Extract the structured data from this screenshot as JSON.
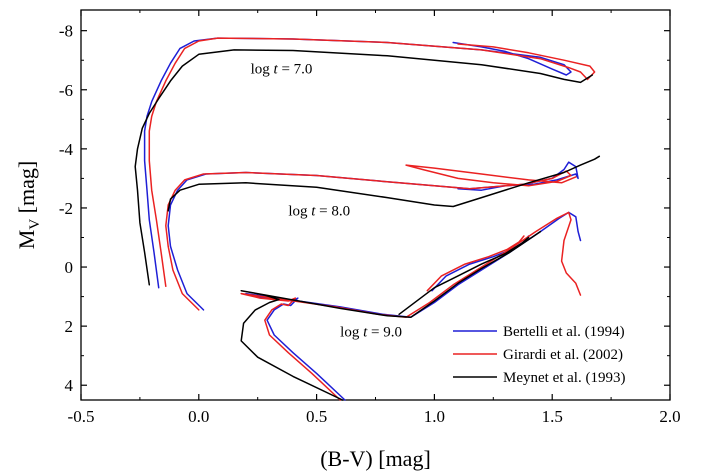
{
  "chart_data": {
    "type": "line",
    "xlabel": "(B-V) [mag]",
    "ylabel": "M",
    "ylabel_sub": "V",
    "ylabel_unit": " [mag]",
    "xlim": [
      -0.5,
      2.0
    ],
    "ylim": [
      4.5,
      -8.7
    ],
    "y_inverted": true,
    "x_ticks": [
      {
        "value": -0.5,
        "label": "-0.5"
      },
      {
        "value": 0.0,
        "label": "0.0"
      },
      {
        "value": 0.5,
        "label": "0.5"
      },
      {
        "value": 1.0,
        "label": "1.0"
      },
      {
        "value": 1.5,
        "label": "1.5"
      },
      {
        "value": 2.0,
        "label": "2.0"
      }
    ],
    "y_ticks": [
      {
        "value": -8,
        "label": "-8"
      },
      {
        "value": -6,
        "label": "-6"
      },
      {
        "value": -4,
        "label": "-4"
      },
      {
        "value": -2,
        "label": "-2"
      },
      {
        "value": 0,
        "label": "0"
      },
      {
        "value": 2,
        "label": "2"
      },
      {
        "value": 4,
        "label": "4"
      }
    ],
    "grid": false,
    "legend_position": "bottom-right",
    "annotations": [
      {
        "prefix": "log ",
        "var": "t",
        "suffix": " = 7.0",
        "x": 0.22,
        "y": -6.55
      },
      {
        "prefix": "log ",
        "var": "t",
        "suffix": " = 8.0",
        "x": 0.38,
        "y": -1.75
      },
      {
        "prefix": "log ",
        "var": "t",
        "suffix": " = 9.0",
        "x": 0.6,
        "y": 2.35
      }
    ],
    "series": [
      {
        "name": "Bertelli et al. (1994)",
        "color": "#1f1fd6",
        "segments": [
          [
            [
              -0.17,
              0.7
            ],
            [
              -0.19,
              -0.5
            ],
            [
              -0.21,
              -1.6
            ],
            [
              -0.22,
              -2.6
            ],
            [
              -0.23,
              -3.6
            ],
            [
              -0.23,
              -4.6
            ],
            [
              -0.22,
              -5.1
            ],
            [
              -0.2,
              -5.6
            ],
            [
              -0.16,
              -6.3
            ],
            [
              -0.12,
              -6.9
            ],
            [
              -0.08,
              -7.4
            ],
            [
              -0.02,
              -7.65
            ],
            [
              0.08,
              -7.75
            ],
            [
              0.4,
              -7.72
            ],
            [
              0.8,
              -7.6
            ],
            [
              1.2,
              -7.35
            ],
            [
              1.45,
              -7.1
            ],
            [
              1.55,
              -6.85
            ],
            [
              1.58,
              -6.6
            ],
            [
              1.56,
              -6.5
            ],
            [
              1.5,
              -6.7
            ],
            [
              1.4,
              -7.05
            ],
            [
              1.3,
              -7.3
            ],
            [
              1.2,
              -7.45
            ],
            [
              1.08,
              -7.6
            ]
          ],
          [
            [
              0.02,
              1.45
            ],
            [
              -0.05,
              0.9
            ],
            [
              -0.09,
              0.1
            ],
            [
              -0.12,
              -0.7
            ],
            [
              -0.13,
              -1.4
            ],
            [
              -0.12,
              -2.1
            ],
            [
              -0.09,
              -2.6
            ],
            [
              -0.05,
              -2.95
            ],
            [
              0.03,
              -3.15
            ],
            [
              0.2,
              -3.2
            ],
            [
              0.5,
              -3.1
            ],
            [
              0.85,
              -2.85
            ],
            [
              1.15,
              -2.65
            ],
            [
              1.38,
              -2.8
            ],
            [
              1.5,
              -3.0
            ],
            [
              1.55,
              -3.3
            ],
            [
              1.57,
              -3.55
            ],
            [
              1.6,
              -3.4
            ],
            [
              1.61,
              -3.0
            ],
            [
              1.6,
              -3.15
            ],
            [
              1.52,
              -2.95
            ],
            [
              1.42,
              -2.8
            ],
            [
              1.3,
              -2.75
            ],
            [
              1.2,
              -2.6
            ],
            [
              1.1,
              -2.65
            ]
          ],
          [
            [
              0.62,
              4.5
            ],
            [
              0.5,
              3.6
            ],
            [
              0.4,
              2.9
            ],
            [
              0.32,
              2.3
            ],
            [
              0.29,
              1.8
            ],
            [
              0.32,
              1.45
            ],
            [
              0.36,
              1.25
            ],
            [
              0.39,
              1.3
            ],
            [
              0.42,
              1.05
            ],
            [
              0.4,
              1.15
            ],
            [
              0.28,
              1.05
            ],
            [
              0.2,
              0.9
            ],
            [
              0.6,
              1.35
            ],
            [
              0.78,
              1.6
            ],
            [
              0.9,
              1.7
            ],
            [
              1.0,
              1.2
            ],
            [
              1.1,
              0.6
            ],
            [
              1.2,
              0.1
            ],
            [
              1.32,
              -0.5
            ],
            [
              1.45,
              -1.2
            ],
            [
              1.53,
              -1.65
            ],
            [
              1.57,
              -1.85
            ],
            [
              1.6,
              -1.7
            ],
            [
              1.61,
              -1.2
            ],
            [
              1.62,
              -0.9
            ]
          ],
          [
            [
              0.99,
              0.8
            ],
            [
              1.05,
              0.3
            ],
            [
              1.15,
              -0.1
            ],
            [
              1.25,
              -0.35
            ],
            [
              1.33,
              -0.6
            ],
            [
              1.38,
              -0.85
            ],
            [
              1.4,
              -1.05
            ]
          ]
        ]
      },
      {
        "name": "Girardi et al. (2002)",
        "color": "#ea2222",
        "segments": [
          [
            [
              -0.14,
              0.65
            ],
            [
              -0.16,
              -0.5
            ],
            [
              -0.18,
              -1.6
            ],
            [
              -0.2,
              -2.6
            ],
            [
              -0.21,
              -3.6
            ],
            [
              -0.21,
              -4.6
            ],
            [
              -0.2,
              -5.1
            ],
            [
              -0.18,
              -5.6
            ],
            [
              -0.14,
              -6.3
            ],
            [
              -0.1,
              -6.9
            ],
            [
              -0.06,
              -7.4
            ],
            [
              0.0,
              -7.65
            ],
            [
              0.08,
              -7.75
            ],
            [
              0.4,
              -7.72
            ],
            [
              0.8,
              -7.6
            ],
            [
              1.2,
              -7.35
            ],
            [
              1.45,
              -7.05
            ],
            [
              1.57,
              -6.75
            ],
            [
              1.62,
              -6.6
            ],
            [
              1.65,
              -6.35
            ],
            [
              1.68,
              -6.6
            ],
            [
              1.66,
              -6.8
            ],
            [
              1.55,
              -7.0
            ],
            [
              1.4,
              -7.25
            ],
            [
              1.25,
              -7.45
            ],
            [
              1.1,
              -7.55
            ]
          ],
          [
            [
              0.0,
              1.45
            ],
            [
              -0.07,
              0.9
            ],
            [
              -0.11,
              0.1
            ],
            [
              -0.13,
              -0.7
            ],
            [
              -0.14,
              -1.4
            ],
            [
              -0.13,
              -2.1
            ],
            [
              -0.1,
              -2.6
            ],
            [
              -0.06,
              -2.95
            ],
            [
              0.02,
              -3.15
            ],
            [
              0.2,
              -3.2
            ],
            [
              0.5,
              -3.1
            ],
            [
              0.85,
              -2.85
            ],
            [
              1.15,
              -2.65
            ],
            [
              1.38,
              -2.8
            ],
            [
              1.5,
              -3.0
            ],
            [
              1.56,
              -3.25
            ],
            [
              1.58,
              -3.1
            ],
            [
              1.52,
              -2.9
            ],
            [
              1.4,
              -2.75
            ],
            [
              1.25,
              -2.85
            ],
            [
              1.1,
              -3.0
            ],
            [
              0.95,
              -3.3
            ],
            [
              0.88,
              -3.45
            ],
            [
              1.0,
              -3.35
            ],
            [
              1.2,
              -3.15
            ],
            [
              1.4,
              -2.95
            ],
            [
              1.54,
              -2.85
            ],
            [
              1.6,
              -3.05
            ]
          ],
          [
            [
              0.6,
              4.5
            ],
            [
              0.48,
              3.6
            ],
            [
              0.38,
              2.9
            ],
            [
              0.3,
              2.3
            ],
            [
              0.28,
              1.8
            ],
            [
              0.31,
              1.45
            ],
            [
              0.35,
              1.25
            ],
            [
              0.38,
              1.3
            ],
            [
              0.41,
              1.05
            ],
            [
              0.38,
              1.15
            ],
            [
              0.26,
              1.05
            ],
            [
              0.18,
              0.9
            ],
            [
              0.58,
              1.35
            ],
            [
              0.76,
              1.6
            ],
            [
              0.88,
              1.7
            ],
            [
              0.98,
              1.2
            ],
            [
              1.08,
              0.6
            ],
            [
              1.18,
              0.1
            ],
            [
              1.3,
              -0.5
            ],
            [
              1.43,
              -1.2
            ],
            [
              1.52,
              -1.65
            ],
            [
              1.57,
              -1.85
            ],
            [
              1.58,
              -1.6
            ],
            [
              1.55,
              -0.9
            ],
            [
              1.54,
              -0.2
            ],
            [
              1.56,
              0.2
            ],
            [
              1.6,
              0.55
            ],
            [
              1.62,
              0.95
            ]
          ],
          [
            [
              0.97,
              0.8
            ],
            [
              1.03,
              0.3
            ],
            [
              1.13,
              -0.1
            ],
            [
              1.23,
              -0.35
            ],
            [
              1.31,
              -0.6
            ],
            [
              1.36,
              -0.85
            ],
            [
              1.38,
              -1.05
            ]
          ]
        ]
      },
      {
        "name": "Meynet et al. (1993)",
        "color": "#000000",
        "segments": [
          [
            [
              -0.21,
              0.6
            ],
            [
              -0.23,
              -0.5
            ],
            [
              -0.25,
              -1.5
            ],
            [
              -0.26,
              -2.6
            ],
            [
              -0.27,
              -3.4
            ],
            [
              -0.26,
              -4.0
            ],
            [
              -0.24,
              -4.7
            ],
            [
              -0.21,
              -5.2
            ],
            [
              -0.17,
              -5.7
            ],
            [
              -0.12,
              -6.3
            ],
            [
              -0.07,
              -6.8
            ],
            [
              0.0,
              -7.2
            ],
            [
              0.15,
              -7.35
            ],
            [
              0.4,
              -7.33
            ],
            [
              0.8,
              -7.15
            ],
            [
              1.2,
              -6.85
            ],
            [
              1.45,
              -6.55
            ],
            [
              1.55,
              -6.35
            ],
            [
              1.62,
              -6.25
            ],
            [
              1.65,
              -6.4
            ],
            [
              1.67,
              -6.5
            ]
          ],
          [
            [
              -0.13,
              -1.9
            ],
            [
              -0.12,
              -2.3
            ],
            [
              -0.08,
              -2.6
            ],
            [
              0.0,
              -2.8
            ],
            [
              0.2,
              -2.85
            ],
            [
              0.5,
              -2.7
            ],
            [
              0.8,
              -2.35
            ],
            [
              1.0,
              -2.1
            ],
            [
              1.08,
              -2.05
            ],
            [
              1.2,
              -2.35
            ],
            [
              1.4,
              -2.85
            ],
            [
              1.55,
              -3.2
            ],
            [
              1.62,
              -3.45
            ],
            [
              1.68,
              -3.65
            ],
            [
              1.7,
              -3.75
            ]
          ],
          [
            [
              0.61,
              4.5
            ],
            [
              0.4,
              3.7
            ],
            [
              0.25,
              3.05
            ],
            [
              0.18,
              2.5
            ],
            [
              0.19,
              1.9
            ],
            [
              0.24,
              1.45
            ],
            [
              0.3,
              1.2
            ],
            [
              0.34,
              1.1
            ],
            [
              0.28,
              0.95
            ],
            [
              0.18,
              0.8
            ],
            [
              0.6,
              1.4
            ],
            [
              0.8,
              1.65
            ],
            [
              0.9,
              1.7
            ],
            [
              1.0,
              1.15
            ],
            [
              1.1,
              0.55
            ],
            [
              1.2,
              0.05
            ],
            [
              1.32,
              -0.5
            ],
            [
              1.45,
              -1.2
            ]
          ],
          [
            [
              0.85,
              1.6
            ],
            [
              1.0,
              0.7
            ],
            [
              1.1,
              0.3
            ],
            [
              1.2,
              -0.1
            ],
            [
              1.3,
              -0.45
            ],
            [
              1.37,
              -0.8
            ],
            [
              1.4,
              -1.0
            ]
          ]
        ]
      }
    ]
  }
}
